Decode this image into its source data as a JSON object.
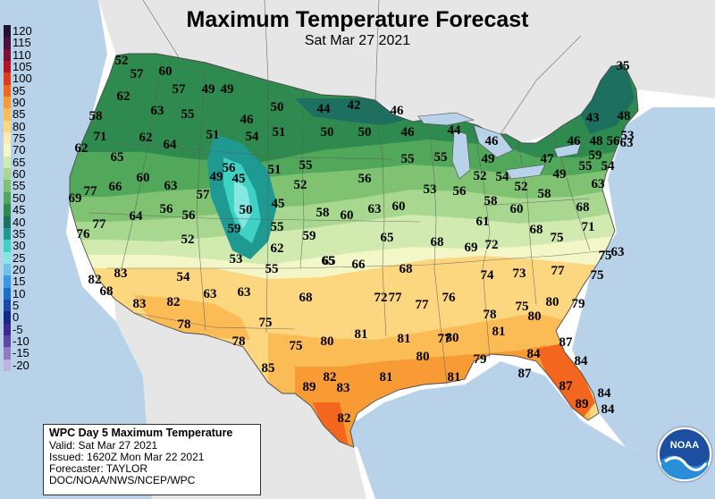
{
  "title": "Maximum Temperature Forecast",
  "subtitle": "Sat Mar 27 2021",
  "legend": [
    {
      "label": "120",
      "color": "#22102f"
    },
    {
      "label": "115",
      "color": "#4a1040"
    },
    {
      "label": "110",
      "color": "#7b0f36"
    },
    {
      "label": "105",
      "color": "#b6122a"
    },
    {
      "label": "100",
      "color": "#e23b1a"
    },
    {
      "label": "95",
      "color": "#f2661d"
    },
    {
      "label": "90",
      "color": "#f89b34"
    },
    {
      "label": "85",
      "color": "#fbbb55"
    },
    {
      "label": "80",
      "color": "#fdd680"
    },
    {
      "label": "75",
      "color": "#fdebb0"
    },
    {
      "label": "70",
      "color": "#f3f6c6"
    },
    {
      "label": "65",
      "color": "#d0eab0"
    },
    {
      "label": "60",
      "color": "#a8d890"
    },
    {
      "label": "55",
      "color": "#7ec272"
    },
    {
      "label": "50",
      "color": "#52a85a"
    },
    {
      "label": "45",
      "color": "#2f8a4f"
    },
    {
      "label": "40",
      "color": "#1d7060"
    },
    {
      "label": "35",
      "color": "#1f9a93"
    },
    {
      "label": "30",
      "color": "#3fd1c4"
    },
    {
      "label": "25",
      "color": "#86e6e0"
    },
    {
      "label": "20",
      "color": "#6fc0ea"
    },
    {
      "label": "15",
      "color": "#3b97e0"
    },
    {
      "label": "10",
      "color": "#1c6fc6"
    },
    {
      "label": "5",
      "color": "#1a4aa8"
    },
    {
      "label": "0",
      "color": "#14288a"
    },
    {
      "label": "-5",
      "color": "#3e2a8e"
    },
    {
      "label": "-10",
      "color": "#5e46a4"
    },
    {
      "label": "-15",
      "color": "#8f7cc2"
    },
    {
      "label": "-20",
      "color": "#c0b4de"
    }
  ],
  "infobox": {
    "heading": "WPC Day 5 Maximum Temperature",
    "valid": "Valid: Sat Mar 27 2021",
    "issued": "Issued: 1620Z Mon Mar 22 2021",
    "forecaster": "Forecaster: TAYLOR",
    "agency": "DOC/NOAA/NWS/NCEP/WPC"
  },
  "logo_text": "NOAA",
  "temps": [
    {
      "v": "52"
    },
    {
      "v": "57"
    },
    {
      "v": "60"
    },
    {
      "v": "57"
    },
    {
      "v": "49"
    },
    {
      "v": "49"
    },
    {
      "v": "62"
    },
    {
      "v": "58"
    },
    {
      "v": "63"
    },
    {
      "v": "55"
    },
    {
      "v": "50"
    },
    {
      "v": "44"
    },
    {
      "v": "42"
    },
    {
      "v": "46"
    },
    {
      "v": "35"
    },
    {
      "v": "43"
    },
    {
      "v": "48"
    },
    {
      "v": "71"
    },
    {
      "v": "62"
    },
    {
      "v": "64"
    },
    {
      "v": "51"
    },
    {
      "v": "46"
    },
    {
      "v": "54"
    },
    {
      "v": "51"
    },
    {
      "v": "50"
    },
    {
      "v": "50"
    },
    {
      "v": "46"
    },
    {
      "v": "44"
    },
    {
      "v": "46"
    },
    {
      "v": "46"
    },
    {
      "v": "48"
    },
    {
      "v": "53"
    },
    {
      "v": "62"
    },
    {
      "v": "65"
    },
    {
      "v": "55"
    },
    {
      "v": "56"
    },
    {
      "v": "51"
    },
    {
      "v": "55"
    },
    {
      "v": "55"
    },
    {
      "v": "49"
    },
    {
      "v": "47"
    },
    {
      "v": "56"
    },
    {
      "v": "59"
    },
    {
      "v": "63"
    },
    {
      "v": "60"
    },
    {
      "v": "49"
    },
    {
      "v": "45"
    },
    {
      "v": "52"
    },
    {
      "v": "56"
    },
    {
      "v": "53"
    },
    {
      "v": "56"
    },
    {
      "v": "52"
    },
    {
      "v": "54"
    },
    {
      "v": "52"
    },
    {
      "v": "58"
    },
    {
      "v": "49"
    },
    {
      "v": "55"
    },
    {
      "v": "54"
    },
    {
      "v": "69"
    },
    {
      "v": "77"
    },
    {
      "v": "66"
    },
    {
      "v": "57"
    },
    {
      "v": "63"
    },
    {
      "v": "77"
    },
    {
      "v": "64"
    },
    {
      "v": "56"
    },
    {
      "v": "56"
    },
    {
      "v": "50"
    },
    {
      "v": "45"
    },
    {
      "v": "58"
    },
    {
      "v": "60"
    },
    {
      "v": "63"
    },
    {
      "v": "60"
    },
    {
      "v": "58"
    },
    {
      "v": "60"
    },
    {
      "v": "63"
    },
    {
      "v": "76"
    },
    {
      "v": "52"
    },
    {
      "v": "59"
    },
    {
      "v": "55"
    },
    {
      "v": "59"
    },
    {
      "v": "61"
    },
    {
      "v": "68"
    },
    {
      "v": "71"
    },
    {
      "v": "75"
    },
    {
      "v": "62"
    },
    {
      "v": "65"
    },
    {
      "v": "65"
    },
    {
      "v": "68"
    },
    {
      "v": "69"
    },
    {
      "v": "72"
    },
    {
      "v": "63"
    },
    {
      "v": "68"
    },
    {
      "v": "83"
    },
    {
      "v": "54"
    },
    {
      "v": "53"
    },
    {
      "v": "55"
    },
    {
      "v": "65"
    },
    {
      "v": "66"
    },
    {
      "v": "68"
    },
    {
      "v": "74"
    },
    {
      "v": "73"
    },
    {
      "v": "77"
    },
    {
      "v": "75"
    },
    {
      "v": "75"
    },
    {
      "v": "82"
    },
    {
      "v": "68"
    },
    {
      "v": "63"
    },
    {
      "v": "63"
    },
    {
      "v": "68"
    },
    {
      "v": "72"
    },
    {
      "v": "77"
    },
    {
      "v": "77"
    },
    {
      "v": "76"
    },
    {
      "v": "83"
    },
    {
      "v": "82"
    },
    {
      "v": "78"
    },
    {
      "v": "75"
    },
    {
      "v": "80"
    },
    {
      "v": "79"
    },
    {
      "v": "75"
    },
    {
      "v": "80"
    },
    {
      "v": "78"
    },
    {
      "v": "81"
    },
    {
      "v": "81"
    },
    {
      "v": "80"
    },
    {
      "v": "81"
    },
    {
      "v": "87"
    },
    {
      "v": "78"
    },
    {
      "v": "75"
    },
    {
      "v": "77"
    },
    {
      "v": "80"
    },
    {
      "v": "79"
    },
    {
      "v": "84"
    },
    {
      "v": "84"
    },
    {
      "v": "81"
    },
    {
      "v": "80"
    },
    {
      "v": "87"
    },
    {
      "v": "82"
    },
    {
      "v": "83"
    },
    {
      "v": "81"
    },
    {
      "v": "87"
    },
    {
      "v": "84"
    },
    {
      "v": "89"
    },
    {
      "v": "84"
    },
    {
      "v": "89"
    },
    {
      "v": "85"
    },
    {
      "v": "82"
    }
  ]
}
